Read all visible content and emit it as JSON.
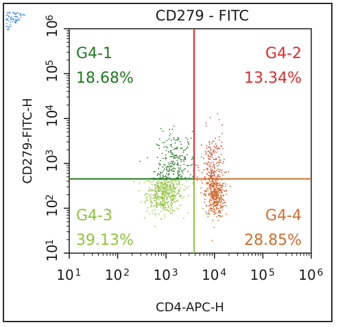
{
  "chart_data": {
    "type": "scatter",
    "title": "CD279 - FITC",
    "xlabel": "CD4-APC-H",
    "ylabel": "CD279-FITC-H",
    "xscale": "log",
    "yscale": "log",
    "xlim": [
      10,
      1000000
    ],
    "ylim": [
      10,
      1000000
    ],
    "x_ticks": [
      {
        "base": "10",
        "exp": "1"
      },
      {
        "base": "10",
        "exp": "2"
      },
      {
        "base": "10",
        "exp": "3"
      },
      {
        "base": "10",
        "exp": "4"
      },
      {
        "base": "10",
        "exp": "5"
      },
      {
        "base": "10",
        "exp": "6"
      }
    ],
    "y_ticks": [
      {
        "base": "10",
        "exp": "1"
      },
      {
        "base": "10",
        "exp": "2"
      },
      {
        "base": "10",
        "exp": "3"
      },
      {
        "base": "10",
        "exp": "4"
      },
      {
        "base": "10",
        "exp": "5"
      },
      {
        "base": "10",
        "exp": "6"
      }
    ],
    "gates": {
      "x": 3800,
      "y": 450
    },
    "quadrants": [
      {
        "name": "G4-1",
        "percent": "18.68%",
        "color": "#1e7a1e",
        "position": "top-left"
      },
      {
        "name": "G4-2",
        "percent": "13.34%",
        "color": "#e0282b",
        "position": "top-right"
      },
      {
        "name": "G4-3",
        "percent": "39.13%",
        "color": "#8fc23a",
        "position": "bottom-left"
      },
      {
        "name": "G4-4",
        "percent": "28.85%",
        "color": "#d06b2e",
        "position": "bottom-right"
      }
    ],
    "point_colors": {
      "top-left": "#2f7a2f",
      "top-right": "#c9573a",
      "bottom-left": "#9cc850",
      "bottom-right": "#cf6a30"
    },
    "gate_line_colors": {
      "vertical_upper": "#e31e24",
      "vertical_lower": "#8fc23a",
      "horizontal_left": "#1e7a1e",
      "horizontal_right": "#d06b2e"
    },
    "grid": false
  }
}
